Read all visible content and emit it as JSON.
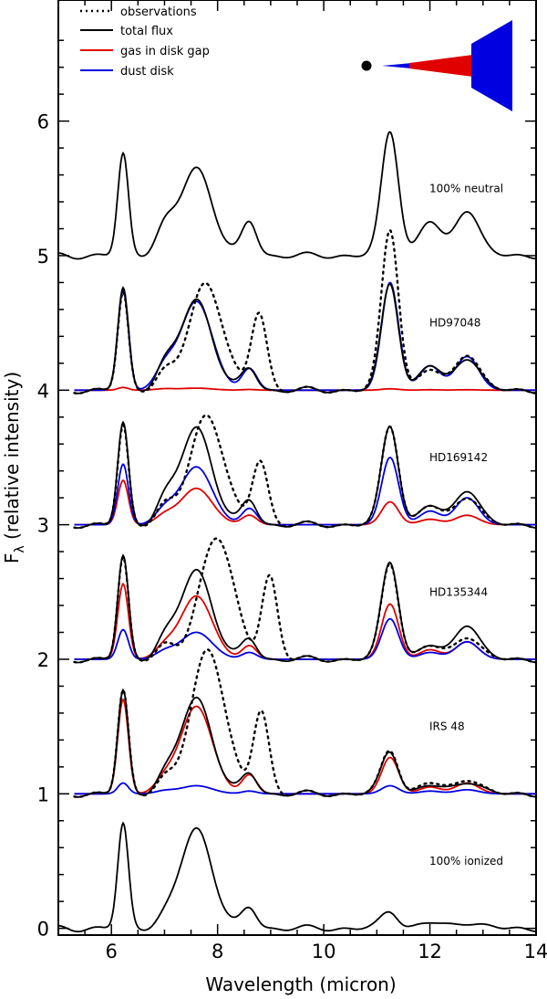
{
  "chart_data": {
    "type": "line",
    "title": "",
    "xlabel": "Wavelength (micron)",
    "ylabel_main": "F",
    "ylabel_sub": "λ",
    "ylabel_rest": " (relative intensity)",
    "xlim": [
      5.0,
      14.0
    ],
    "ylim": [
      -0.05,
      6.9
    ],
    "x_ticks": [
      6,
      8,
      10,
      12,
      14
    ],
    "y_ticks": [
      0,
      1,
      2,
      3,
      4,
      5,
      6
    ],
    "legend": [
      {
        "name": "observations",
        "color": "#000000",
        "style": "dotted"
      },
      {
        "name": "total flux",
        "color": "#000000",
        "style": "solid"
      },
      {
        "name": "gas in disk gap",
        "color": "#e00000",
        "style": "solid"
      },
      {
        "name": "dust disk",
        "color": "#0000e0",
        "style": "solid"
      }
    ],
    "colors": {
      "obs": "#000000",
      "total": "#000000",
      "gas": "#e00000",
      "dust": "#0000e0",
      "star": "#000000"
    },
    "panels": [
      {
        "label": "100% neutral",
        "offset": 5,
        "series": {
          "total": {
            "peaks": [
              0.75,
              0.18,
              0.65,
              0.25,
              0.93,
              0.25,
              0.35
            ]
          }
        }
      },
      {
        "label": "HD97048",
        "offset": 4,
        "series": {
          "total": {
            "peaks": [
              0.75,
              0.15,
              0.67,
              0.16,
              0.8,
              0.18,
              0.25
            ]
          },
          "dust": {
            "peaks": [
              0.74,
              0.15,
              0.66,
              0.16,
              0.8,
              0.18,
              0.25
            ]
          },
          "gas": {
            "peaks": [
              0.02,
              0.01,
              0.015,
              0.005,
              0.01,
              0.003,
              0.003
            ]
          },
          "obs": {
            "peaks": [
              0.72,
              0.12,
              0.8,
              0.58,
              1.2,
              0.15,
              0.28
            ],
            "shift": 0.18,
            "width": 1.05
          }
        }
      },
      {
        "label": "HD169142",
        "offset": 3,
        "series": {
          "total": {
            "peaks": [
              0.75,
              0.15,
              0.72,
              0.18,
              0.74,
              0.14,
              0.27
            ]
          },
          "dust": {
            "peaks": [
              0.45,
              0.1,
              0.43,
              0.12,
              0.5,
              0.1,
              0.2
            ]
          },
          "gas": {
            "peaks": [
              0.33,
              0.06,
              0.27,
              0.07,
              0.17,
              0.04,
              0.07
            ]
          },
          "obs": {
            "peaks": [
              0.73,
              0.13,
              0.82,
              0.48,
              0.74,
              0.14,
              0.22
            ],
            "shift": 0.2,
            "width": 1.05
          }
        }
      },
      {
        "label": "HD135344",
        "offset": 2,
        "series": {
          "total": {
            "peaks": [
              0.76,
              0.12,
              0.66,
              0.15,
              0.73,
              0.1,
              0.27
            ]
          },
          "gas": {
            "peaks": [
              0.56,
              0.08,
              0.47,
              0.1,
              0.41,
              0.07,
              0.13
            ]
          },
          "dust": {
            "peaks": [
              0.22,
              0.05,
              0.2,
              0.05,
              0.3,
              0.05,
              0.13
            ]
          },
          "obs": {
            "peaks": [
              0.75,
              0.1,
              0.92,
              0.62,
              0.72,
              0.1,
              0.18
            ],
            "shift": 0.38,
            "width": 1.05
          }
        }
      },
      {
        "label": "IRS 48",
        "offset": 1,
        "series": {
          "total": {
            "peaks": [
              0.76,
              0.1,
              0.71,
              0.15,
              0.32,
              0.06,
              0.1
            ]
          },
          "gas": {
            "peaks": [
              0.7,
              0.09,
              0.65,
              0.14,
              0.27,
              0.05,
              0.08
            ]
          },
          "dust": {
            "peaks": [
              0.08,
              0.02,
              0.06,
              0.02,
              0.06,
              0.02,
              0.03
            ]
          },
          "obs": {
            "peaks": [
              0.76,
              0.1,
              1.08,
              0.62,
              0.33,
              0.08,
              0.12
            ],
            "shift": 0.22,
            "width": 1.05
          }
        }
      },
      {
        "label": "100% ionized",
        "offset": 0,
        "series": {
          "total": {
            "peaks": [
              0.77,
              0.05,
              0.74,
              0.15,
              0.13,
              0.04,
              0.05
            ]
          }
        }
      }
    ],
    "line_centers": [
      6.22,
      7.0,
      7.6,
      8.6,
      11.25,
      12.0,
      12.7
    ],
    "line_widths": [
      0.1,
      0.18,
      0.3,
      0.14,
      0.16,
      0.2,
      0.22
    ]
  }
}
